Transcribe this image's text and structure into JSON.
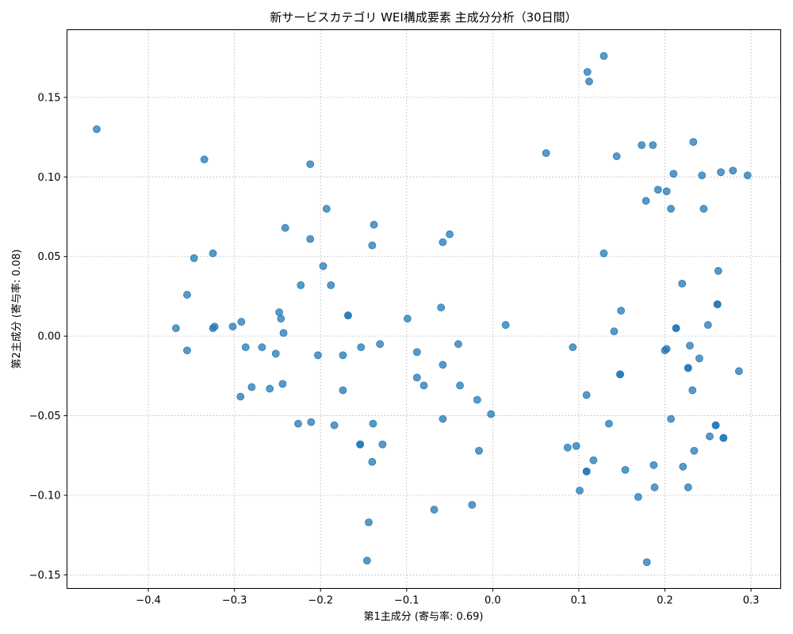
{
  "chart_data": {
    "type": "scatter",
    "title": "新サービスカテゴリ WEI構成要素 主成分分析（30日間）",
    "xlabel": "第1主成分 (寄与率: 0.69)",
    "ylabel": "第2主成分 (寄与率: 0.08)",
    "xlim": [
      -0.4945,
      0.3345
    ],
    "ylim": [
      -0.1585,
      0.1925
    ],
    "xticks": [
      -0.4,
      -0.3,
      -0.2,
      -0.1,
      0.0,
      0.1,
      0.2,
      0.3
    ],
    "xtick_labels": [
      "−0.4",
      "−0.3",
      "−0.2",
      "−0.1",
      "0.0",
      "0.1",
      "0.2",
      "0.3"
    ],
    "yticks": [
      -0.15,
      -0.1,
      -0.05,
      0.0,
      0.05,
      0.1,
      0.15
    ],
    "ytick_labels": [
      "−0.15",
      "−0.10",
      "−0.05",
      "0.00",
      "0.05",
      "0.10",
      "0.15"
    ],
    "grid": true,
    "color": "#1f77b4",
    "points": [
      [
        -0.46,
        0.13
      ],
      [
        -0.335,
        0.111
      ],
      [
        -0.347,
        0.049
      ],
      [
        -0.325,
        0.052
      ],
      [
        -0.355,
        0.026
      ],
      [
        -0.368,
        0.005
      ],
      [
        -0.355,
        -0.009
      ],
      [
        -0.325,
        0.005
      ],
      [
        -0.323,
        0.006
      ],
      [
        -0.302,
        0.006
      ],
      [
        -0.292,
        0.009
      ],
      [
        -0.287,
        -0.007
      ],
      [
        -0.268,
        -0.007
      ],
      [
        -0.252,
        -0.011
      ],
      [
        -0.248,
        0.015
      ],
      [
        -0.246,
        0.011
      ],
      [
        -0.243,
        0.002
      ],
      [
        -0.244,
        -0.03
      ],
      [
        -0.259,
        -0.033
      ],
      [
        -0.28,
        -0.032
      ],
      [
        -0.293,
        -0.038
      ],
      [
        -0.241,
        0.068
      ],
      [
        -0.212,
        0.108
      ],
      [
        -0.212,
        0.061
      ],
      [
        -0.223,
        0.032
      ],
      [
        -0.193,
        0.08
      ],
      [
        -0.197,
        0.044
      ],
      [
        -0.188,
        0.032
      ],
      [
        -0.168,
        0.013
      ],
      [
        -0.168,
        0.013
      ],
      [
        -0.203,
        -0.012
      ],
      [
        -0.174,
        -0.012
      ],
      [
        -0.153,
        -0.007
      ],
      [
        -0.131,
        -0.005
      ],
      [
        -0.174,
        -0.034
      ],
      [
        -0.226,
        -0.055
      ],
      [
        -0.211,
        -0.054
      ],
      [
        -0.184,
        -0.056
      ],
      [
        -0.154,
        -0.068
      ],
      [
        -0.154,
        -0.068
      ],
      [
        -0.128,
        -0.068
      ],
      [
        -0.139,
        -0.055
      ],
      [
        -0.14,
        -0.079
      ],
      [
        -0.144,
        -0.117
      ],
      [
        -0.146,
        -0.141
      ],
      [
        -0.138,
        0.07
      ],
      [
        -0.14,
        0.057
      ],
      [
        -0.099,
        0.011
      ],
      [
        -0.088,
        -0.01
      ],
      [
        -0.088,
        -0.026
      ],
      [
        -0.08,
        -0.031
      ],
      [
        -0.068,
        -0.109
      ],
      [
        -0.05,
        0.064
      ],
      [
        -0.058,
        0.059
      ],
      [
        -0.06,
        0.018
      ],
      [
        -0.058,
        -0.018
      ],
      [
        -0.058,
        -0.052
      ],
      [
        -0.04,
        -0.005
      ],
      [
        -0.038,
        -0.031
      ],
      [
        -0.024,
        -0.106
      ],
      [
        -0.018,
        -0.04
      ],
      [
        -0.016,
        -0.072
      ],
      [
        -0.002,
        -0.049
      ],
      [
        0.015,
        0.007
      ],
      [
        0.062,
        0.115
      ],
      [
        0.11,
        0.166
      ],
      [
        0.112,
        0.16
      ],
      [
        0.129,
        0.176
      ],
      [
        0.144,
        0.113
      ],
      [
        0.129,
        0.052
      ],
      [
        0.093,
        -0.007
      ],
      [
        0.109,
        -0.037
      ],
      [
        0.087,
        -0.07
      ],
      [
        0.097,
        -0.069
      ],
      [
        0.101,
        -0.097
      ],
      [
        0.109,
        -0.085
      ],
      [
        0.109,
        -0.085
      ],
      [
        0.117,
        -0.078
      ],
      [
        0.135,
        -0.055
      ],
      [
        0.148,
        -0.024
      ],
      [
        0.148,
        -0.024
      ],
      [
        0.154,
        -0.084
      ],
      [
        0.141,
        0.003
      ],
      [
        0.149,
        0.016
      ],
      [
        0.173,
        0.12
      ],
      [
        0.186,
        0.12
      ],
      [
        0.178,
        0.085
      ],
      [
        0.192,
        0.092
      ],
      [
        0.202,
        0.091
      ],
      [
        0.207,
        0.08
      ],
      [
        0.21,
        0.102
      ],
      [
        0.233,
        0.122
      ],
      [
        0.243,
        0.101
      ],
      [
        0.245,
        0.08
      ],
      [
        0.265,
        0.103
      ],
      [
        0.279,
        0.104
      ],
      [
        0.296,
        0.101
      ],
      [
        0.22,
        0.033
      ],
      [
        0.262,
        0.041
      ],
      [
        0.261,
        0.02
      ],
      [
        0.261,
        0.02
      ],
      [
        0.213,
        0.005
      ],
      [
        0.213,
        0.005
      ],
      [
        0.25,
        0.007
      ],
      [
        0.2,
        -0.009
      ],
      [
        0.202,
        -0.008
      ],
      [
        0.229,
        -0.006
      ],
      [
        0.24,
        -0.014
      ],
      [
        0.227,
        -0.02
      ],
      [
        0.227,
        -0.02
      ],
      [
        0.232,
        -0.034
      ],
      [
        0.286,
        -0.022
      ],
      [
        0.207,
        -0.052
      ],
      [
        0.259,
        -0.056
      ],
      [
        0.259,
        -0.056
      ],
      [
        0.252,
        -0.063
      ],
      [
        0.268,
        -0.064
      ],
      [
        0.268,
        -0.064
      ],
      [
        0.234,
        -0.072
      ],
      [
        0.187,
        -0.081
      ],
      [
        0.221,
        -0.082
      ],
      [
        0.188,
        -0.095
      ],
      [
        0.227,
        -0.095
      ],
      [
        0.169,
        -0.101
      ],
      [
        0.179,
        -0.142
      ]
    ]
  }
}
